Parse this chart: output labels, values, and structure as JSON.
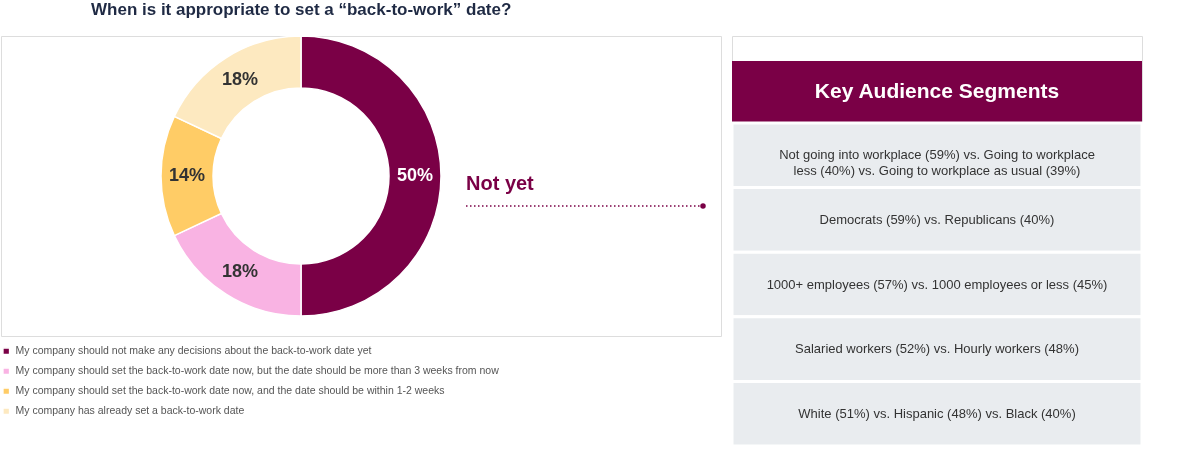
{
  "chart_data": [
    {
      "type": "donut",
      "title": "When is it appropriate to set a “back-to-work” date?",
      "categories": [
        "My company should not make any decisions about the back-to-work date yet",
        "My company should set the back-to-work date now, but the date should be more than 3 weeks from now",
        "My company should set the back-to-work date now, and the date should be within 1-2 weeks",
        "My company has already set a back-to-work date"
      ],
      "values": [
        50,
        18,
        14,
        18
      ],
      "value_labels": [
        "50%",
        "18%",
        "14%",
        "18%"
      ],
      "colors": [
        "#7a0046",
        "#f9b3e3",
        "#ffcc66",
        "#fde9c0"
      ],
      "legend": "bottom left",
      "annotations": [
        "Not yet"
      ]
    },
    {
      "type": "other",
      "title": "Key Audience Segments",
      "annotations": [
        "Not going into workplace (59%) vs. Going to workplace less (40%) vs. Going to workplace as usual (39%)",
        "Democrats (59%) vs. Republicans (40%)",
        "1000+ employees (57%) vs. 1000 employees or less (45%)",
        "Salaried workers (52%) vs. Hourly workers (48%)",
        "White (51%) vs. Hispanic (48%) vs. Black (40%)"
      ]
    }
  ]
}
